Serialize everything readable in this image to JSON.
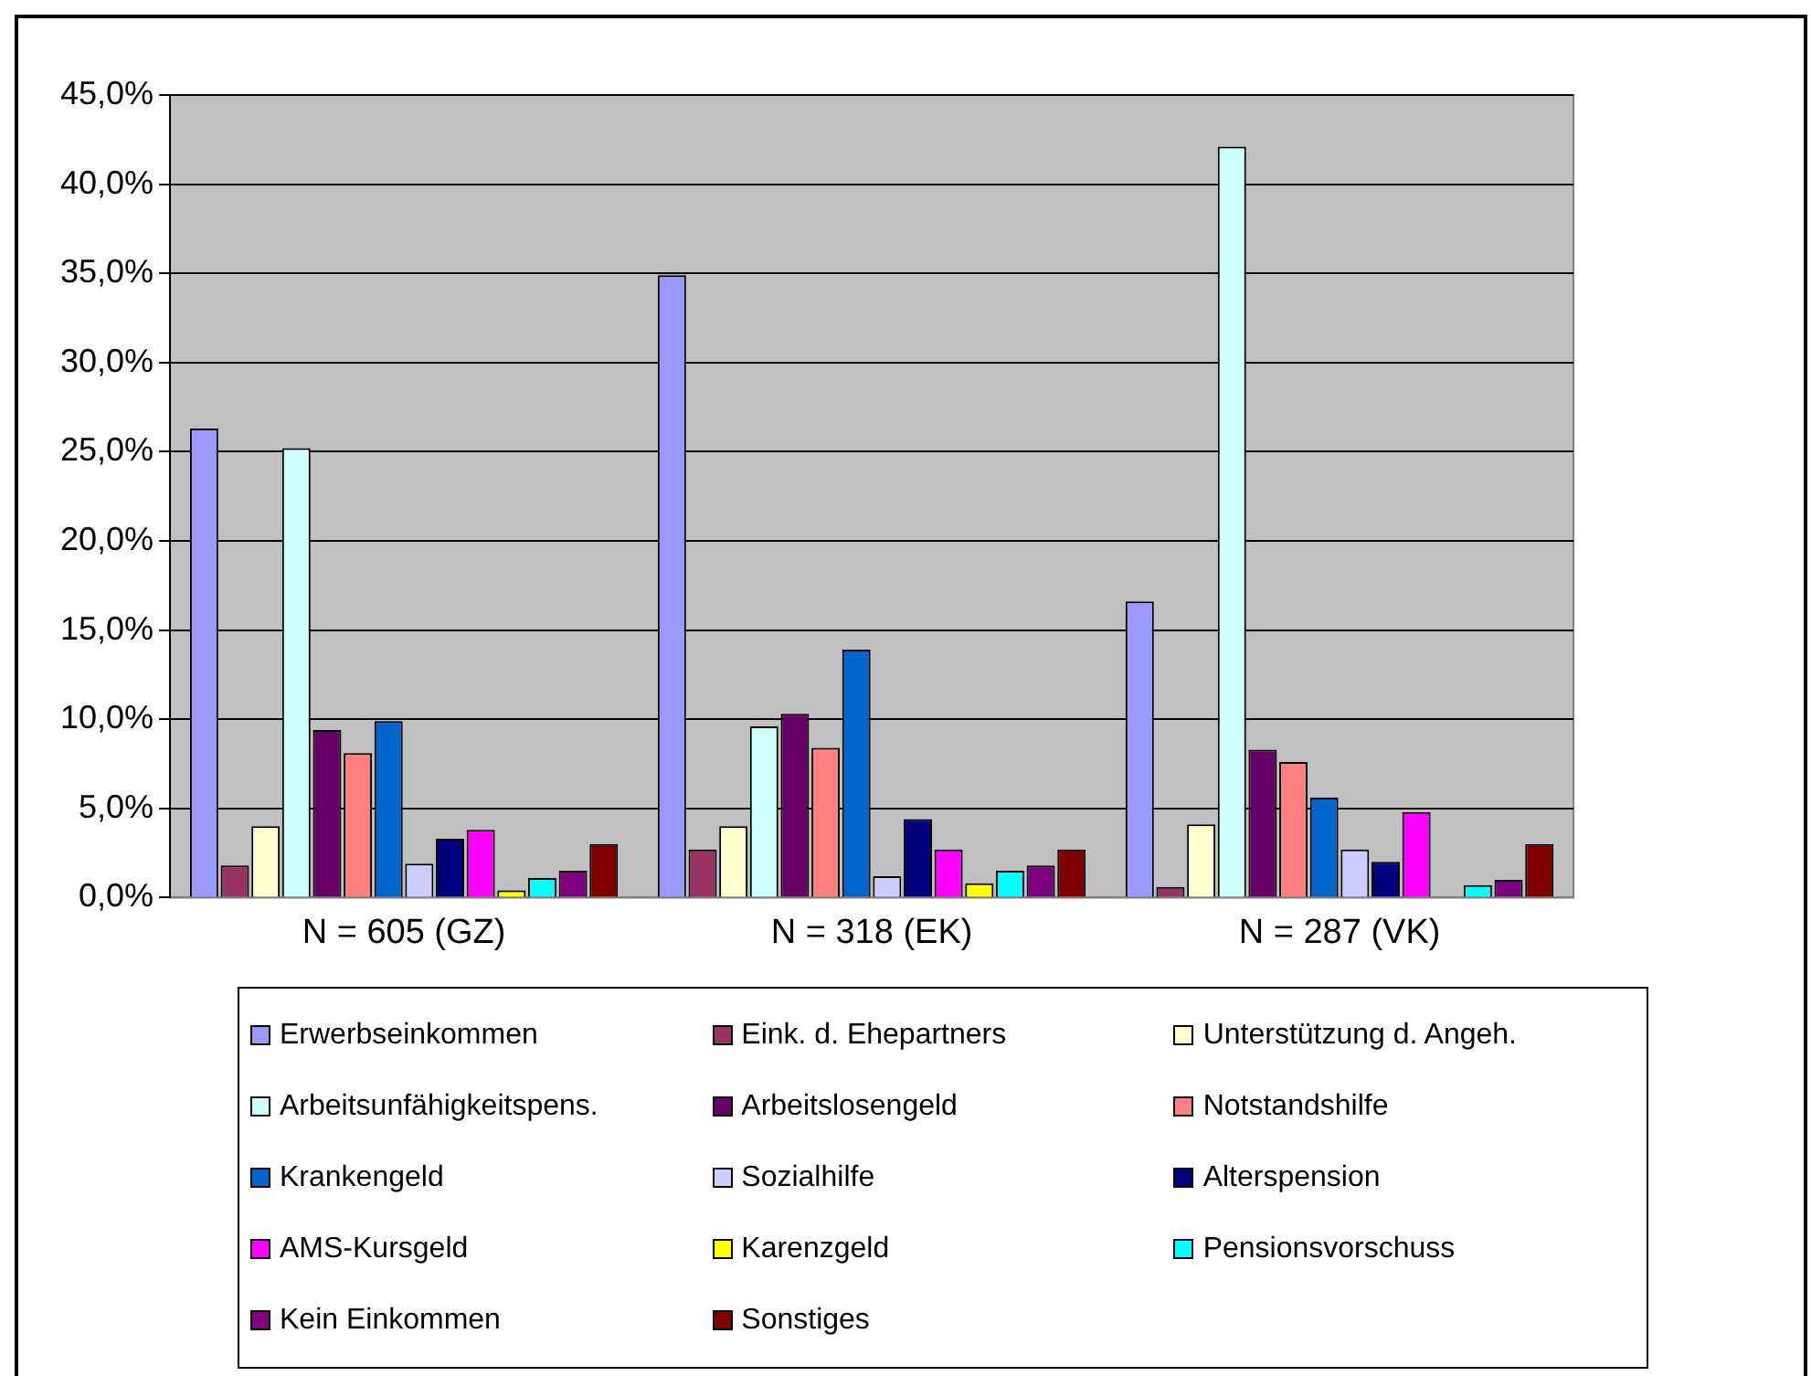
{
  "chart_data": {
    "type": "bar",
    "categories": [
      "N = 605 (GZ)",
      "N = 318 (EK)",
      "N = 287 (VK)"
    ],
    "series": [
      {
        "name": "Erwerbseinkommen",
        "color": "#9999ff",
        "values": [
          26.3,
          34.9,
          16.6
        ]
      },
      {
        "name": "Eink. d. Ehepartners",
        "color": "#993366",
        "values": [
          1.8,
          2.7,
          0.6
        ]
      },
      {
        "name": "Unterstützung d. Angeh.",
        "color": "#ffffcc",
        "values": [
          4.0,
          4.0,
          4.1
        ]
      },
      {
        "name": "Arbeitsunfähigkeitspens.",
        "color": "#ccffff",
        "values": [
          25.2,
          9.6,
          42.1
        ]
      },
      {
        "name": "Arbeitslosengeld",
        "color": "#660066",
        "values": [
          9.4,
          10.3,
          8.3
        ]
      },
      {
        "name": "Notstandshilfe",
        "color": "#ff8080",
        "values": [
          8.1,
          8.4,
          7.6
        ]
      },
      {
        "name": "Krankengeld",
        "color": "#0066cc",
        "values": [
          9.9,
          13.9,
          5.6
        ]
      },
      {
        "name": "Sozialhilfe",
        "color": "#ccccff",
        "values": [
          1.9,
          1.2,
          2.7
        ]
      },
      {
        "name": "Alterspension",
        "color": "#000080",
        "values": [
          3.3,
          4.4,
          2.0
        ]
      },
      {
        "name": "AMS-Kursgeld",
        "color": "#ff00ff",
        "values": [
          3.8,
          2.7,
          4.8
        ]
      },
      {
        "name": "Karenzgeld",
        "color": "#ffff00",
        "values": [
          0.4,
          0.8,
          0
        ]
      },
      {
        "name": "Pensionsvorschuss",
        "color": "#00ffff",
        "values": [
          1.1,
          1.5,
          0.7
        ]
      },
      {
        "name": "Kein Einkommen",
        "color": "#800080",
        "values": [
          1.5,
          1.8,
          1.0
        ]
      },
      {
        "name": "Sonstiges",
        "color": "#800000",
        "values": [
          3.0,
          2.7,
          3.0
        ]
      }
    ],
    "ylim": [
      0,
      45
    ],
    "yticks": [
      {
        "value": 0,
        "label": "0,0%"
      },
      {
        "value": 5,
        "label": "5,0%"
      },
      {
        "value": 10,
        "label": "10,0%"
      },
      {
        "value": 15,
        "label": "15,0%"
      },
      {
        "value": 20,
        "label": "20,0%"
      },
      {
        "value": 25,
        "label": "25,0%"
      },
      {
        "value": 30,
        "label": "30,0%"
      },
      {
        "value": 35,
        "label": "35,0%"
      },
      {
        "value": 40,
        "label": "40,0%"
      },
      {
        "value": 45,
        "label": "45,0%"
      }
    ],
    "grid": "y",
    "legend": "bottom"
  }
}
